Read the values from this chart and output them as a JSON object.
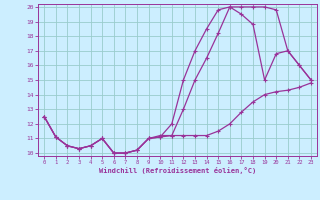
{
  "xlabel": "Windchill (Refroidissement éolien,°C)",
  "bg_color": "#cceeff",
  "grid_color": "#99cccc",
  "line_color": "#993399",
  "xlim": [
    -0.5,
    23.5
  ],
  "ylim": [
    9.8,
    20.2
  ],
  "xticks": [
    0,
    1,
    2,
    3,
    4,
    5,
    6,
    7,
    8,
    9,
    10,
    11,
    12,
    13,
    14,
    15,
    16,
    17,
    18,
    19,
    20,
    21,
    22,
    23
  ],
  "yticks": [
    10,
    11,
    12,
    13,
    14,
    15,
    16,
    17,
    18,
    19,
    20
  ],
  "curve1_x": [
    0,
    1,
    2,
    3,
    4,
    5,
    6,
    7,
    8,
    9,
    10,
    11,
    12,
    13,
    14,
    15,
    16,
    17,
    18,
    19,
    20,
    21,
    22,
    23
  ],
  "curve1_y": [
    12.5,
    11.1,
    10.5,
    10.3,
    10.5,
    11.0,
    10.0,
    10.0,
    10.2,
    11.0,
    11.1,
    11.2,
    13.0,
    15.0,
    16.5,
    18.2,
    20.0,
    20.0,
    20.0,
    20.0,
    19.8,
    17.0,
    16.0,
    15.0
  ],
  "curve2_x": [
    0,
    1,
    2,
    3,
    4,
    5,
    6,
    7,
    8,
    9,
    10,
    11,
    12,
    13,
    14,
    15,
    16,
    17,
    18,
    19,
    20,
    21,
    22,
    23
  ],
  "curve2_y": [
    12.5,
    11.1,
    10.5,
    10.3,
    10.5,
    11.0,
    10.0,
    10.0,
    10.2,
    11.0,
    11.1,
    12.0,
    15.0,
    17.0,
    18.5,
    19.8,
    20.0,
    19.5,
    18.8,
    15.0,
    16.8,
    17.0,
    16.0,
    15.0
  ],
  "curve3_x": [
    0,
    1,
    2,
    3,
    4,
    5,
    6,
    7,
    8,
    9,
    10,
    11,
    12,
    13,
    14,
    15,
    16,
    17,
    18,
    19,
    20,
    21,
    22,
    23
  ],
  "curve3_y": [
    12.5,
    11.1,
    10.5,
    10.3,
    10.5,
    11.0,
    10.0,
    10.0,
    10.2,
    11.0,
    11.2,
    11.2,
    11.2,
    11.2,
    11.2,
    11.5,
    12.0,
    12.8,
    13.5,
    14.0,
    14.2,
    14.3,
    14.5,
    14.8
  ]
}
